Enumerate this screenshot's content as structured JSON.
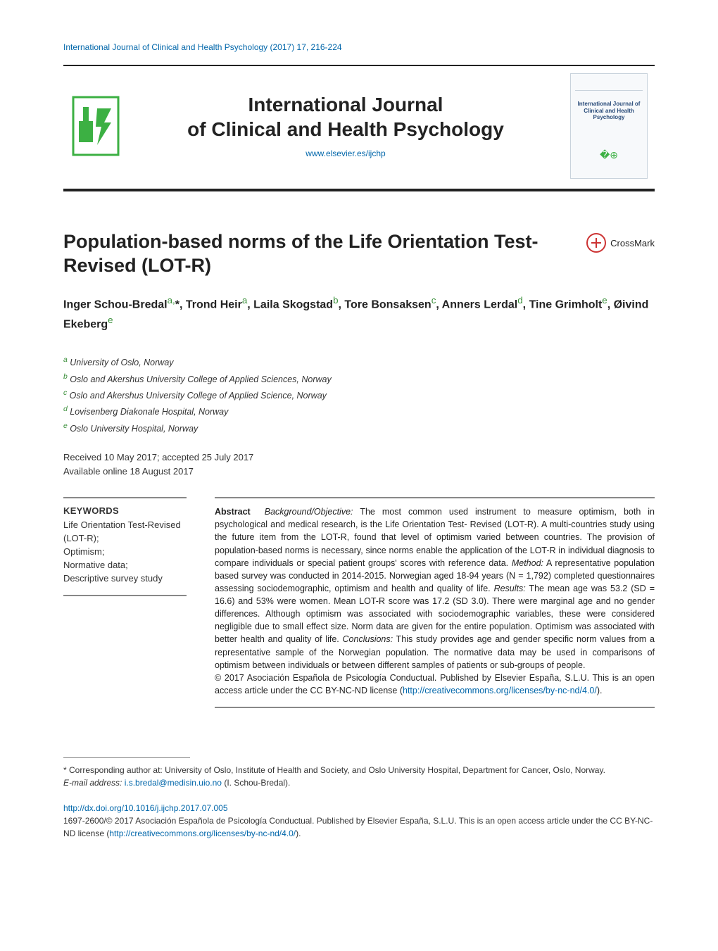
{
  "running_head": "International Journal of Clinical and Health Psychology (2017) 17, 216-224",
  "banner": {
    "journal_line1": "International Journal",
    "journal_line2": "of Clinical and Health Psychology",
    "site": "www.elsevier.es/ijchp",
    "cover_small_title": "International Journal of Clinical and Health Psychology"
  },
  "article": {
    "title": "Population-based norms of the Life Orientation Test-Revised (LOT-R)",
    "crossmark": "CrossMark"
  },
  "authors_html": "Inger Schou-Bredal<sup>a,</sup><span class='asterisk'>*</span>, Trond Heir<sup>a</sup>, Laila Skogstad<sup>b</sup>, Tore Bonsaksen<sup>c</sup>, Anners Lerdal<sup>d</sup>, Tine Grimholt<sup>e</sup>, Øivind Ekeberg<sup>e</sup>",
  "affiliations": [
    {
      "label": "a",
      "text": "University of Oslo, Norway"
    },
    {
      "label": "b",
      "text": "Oslo and Akershus University College of Applied Sciences, Norway"
    },
    {
      "label": "c",
      "text": "Oslo and Akershus University College of Applied Science, Norway"
    },
    {
      "label": "d",
      "text": "Lovisenberg Diakonale Hospital, Norway"
    },
    {
      "label": "e",
      "text": "Oslo University Hospital, Norway"
    }
  ],
  "dates": {
    "received_accepted": "Received 10 May 2017; accepted 25 July 2017",
    "online": "Available online 18 August 2017"
  },
  "keywords": {
    "heading": "KEYWORDS",
    "list": [
      "Life Orientation Test-Revised (LOT-R);",
      "Optimism;",
      "Normative data;",
      "Descriptive survey study"
    ]
  },
  "abstract": {
    "label": "Abstract",
    "sections": {
      "background_label": "Background/Objective:",
      "background": "The most common used instrument to measure optimism, both in psychological and medical research, is the Life Orientation Test- Revised (LOT-R). A multi-countries study using the future item from the LOT-R, found that level of optimism varied between countries. The provision of population-based norms is necessary, since norms enable the application of the LOT-R in individual diagnosis to compare individuals or special patient groups' scores with reference data.",
      "method_label": "Method:",
      "method": "A representative population based survey was conducted in 2014-2015. Norwegian aged 18-94 years (N = 1,792) completed questionnaires assessing sociodemographic, optimism and health and quality of life.",
      "results_label": "Results:",
      "results": "The mean age was 53.2 (SD = 16.6) and 53% were women. Mean LOT-R score was 17.2 (SD 3.0). There were marginal age and no gender differences. Although optimism was associated with sociodemographic variables, these were considered negligible due to small effect size. Norm data are given for the entire population. Optimism was associated with better health and quality of life.",
      "conclusions_label": "Conclusions:",
      "conclusions": "This study provides age and gender specific norm values from a representative sample of the Norwegian population. The normative data may be used in comparisons of optimism between individuals or between different samples of patients or sub-groups of people."
    },
    "copyright": "© 2017 Asociación Española de Psicología Conductual. Published by Elsevier España, S.L.U. This is an open access article under the CC BY-NC-ND license (",
    "license_url": "http://creativecommons.org/licenses/by-nc-nd/4.0/",
    "copyright_close": ")."
  },
  "footnotes": {
    "corresponding": "* Corresponding author at: University of Oslo, Institute of Health and Society, and Oslo University Hospital, Department for Cancer, Oslo, Norway.",
    "email_label": "E-mail address:",
    "email": "i.s.bredal@medisin.uio.no",
    "email_who": "(I. Schou-Bredal)."
  },
  "bottom": {
    "doi": "http://dx.doi.org/10.1016/j.ijchp.2017.07.005",
    "issn_line": "1697-2600/© 2017 Asociación Española de Psicología Conductual. Published by Elsevier España, S.L.U. This is an open access article under the CC BY-NC-ND license (",
    "license_url": "http://creativecommons.org/licenses/by-nc-nd/4.0/",
    "close": ")."
  },
  "colors": {
    "link": "#0066aa",
    "sup": "#3a8f3a",
    "text": "#333333",
    "rule": "#888888",
    "logo_green": "#3cb043"
  },
  "typography": {
    "running_head_pt": 12,
    "banner_title_pt": 28,
    "article_title_pt": 27,
    "authors_pt": 16,
    "affils_pt": 12.5,
    "body_pt": 12.5,
    "footnote_pt": 12
  }
}
